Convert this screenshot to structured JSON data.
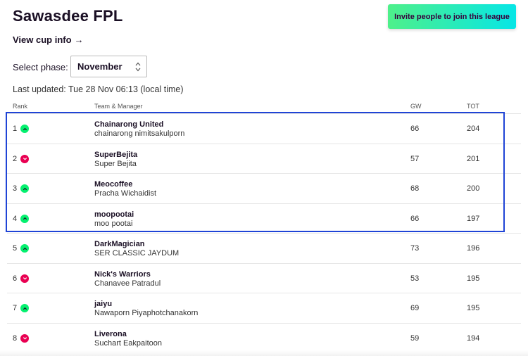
{
  "league": {
    "title": "Sawasdee FPL",
    "cup_link": "View cup info",
    "cup_arrow": "→"
  },
  "invite_button": "Invite people to join this league",
  "phase": {
    "label": "Select phase:",
    "selected": "November"
  },
  "last_updated": "Last updated: Tue 28 Nov 06:13 (local time)",
  "table": {
    "headers": {
      "rank": "Rank",
      "team": "Team & Manager",
      "gw": "GW",
      "tot": "TOT"
    },
    "rows": [
      {
        "rank": "1",
        "movement": "up",
        "team": "Chainarong United",
        "manager": "chainarong nimitsakulporn",
        "gw": "66",
        "tot": "204"
      },
      {
        "rank": "2",
        "movement": "down",
        "team": "SuperBejita",
        "manager": "Super Bejita",
        "gw": "57",
        "tot": "201"
      },
      {
        "rank": "3",
        "movement": "up",
        "team": "Meocoffee",
        "manager": "Pracha Wichaidist",
        "gw": "68",
        "tot": "200"
      },
      {
        "rank": "4",
        "movement": "up",
        "team": "moopootai",
        "manager": "moo pootai",
        "gw": "66",
        "tot": "197"
      },
      {
        "rank": "5",
        "movement": "up",
        "team": "DarkMagician",
        "manager": "SER CLASSIC JAYDUM",
        "gw": "73",
        "tot": "196"
      },
      {
        "rank": "6",
        "movement": "down",
        "team": "Nick's Warriors",
        "manager": "Chanavee Patradul",
        "gw": "53",
        "tot": "195"
      },
      {
        "rank": "7",
        "movement": "up",
        "team": "jaiyu",
        "manager": "Nawaporn Piyaphotchanakorn",
        "gw": "69",
        "tot": "195"
      },
      {
        "rank": "8",
        "movement": "down",
        "team": "Liverona",
        "manager": "Suchart Eakpaitoon",
        "gw": "59",
        "tot": "194"
      }
    ]
  },
  "colors": {
    "move_up": "#05f06f",
    "move_down": "#e90052",
    "highlight": "#1f44d6"
  }
}
